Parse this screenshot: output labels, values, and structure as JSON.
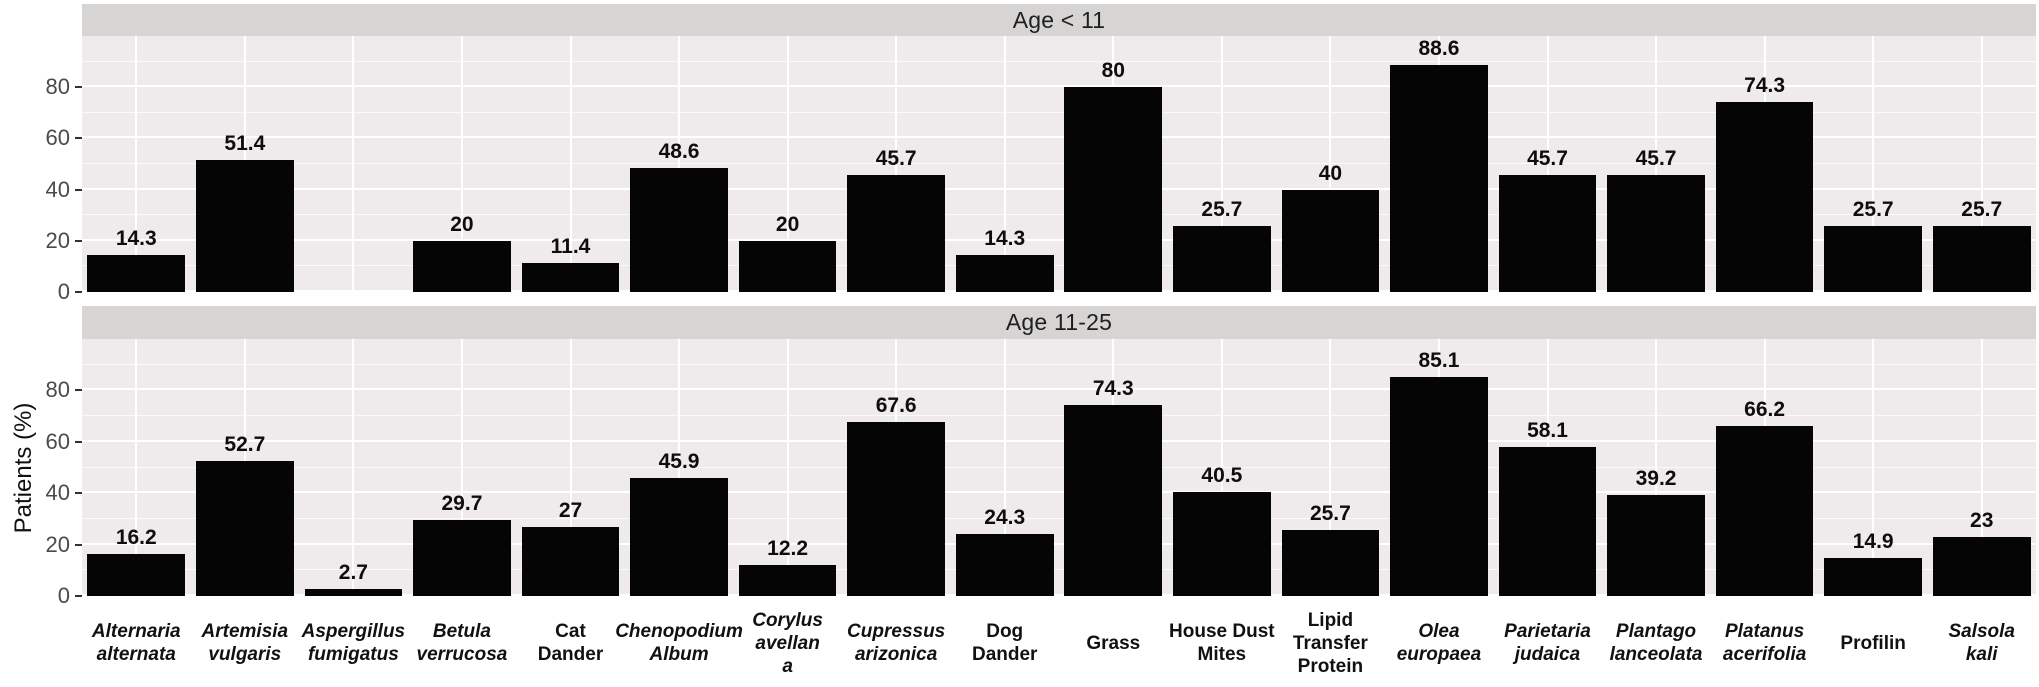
{
  "chart_data": {
    "type": "bar",
    "title": "",
    "ylabel": "Patients (%)",
    "xlabel": "",
    "ylim": [
      0,
      100
    ],
    "yticks": [
      0,
      20,
      40,
      60,
      80
    ],
    "minor_yticks": [
      10,
      30,
      50,
      70,
      90
    ],
    "grid": "on",
    "legend": "none",
    "bar_color": "#050505",
    "panel_bg": "#efebec",
    "strip_bg": "#d7d4d4",
    "gridline_color": "#ffffff",
    "categories": [
      {
        "lines": [
          "Alternaria",
          "alternata"
        ],
        "italic": true
      },
      {
        "lines": [
          "Artemisia",
          "vulgaris"
        ],
        "italic": true
      },
      {
        "lines": [
          "Aspergillus",
          "fumigatus"
        ],
        "italic": true
      },
      {
        "lines": [
          "Betula",
          "verrucosa"
        ],
        "italic": true
      },
      {
        "lines": [
          "Cat",
          "Dander"
        ],
        "italic": false
      },
      {
        "lines": [
          "Chenopodium",
          "Album"
        ],
        "italic": true
      },
      {
        "lines": [
          "Corylus",
          "avellan",
          "a"
        ],
        "italic": true
      },
      {
        "lines": [
          "Cupressus",
          "arizonica"
        ],
        "italic": true
      },
      {
        "lines": [
          "Dog",
          "Dander"
        ],
        "italic": false
      },
      {
        "lines": [
          "Grass"
        ],
        "italic": false
      },
      {
        "lines": [
          "House Dust",
          "Mites"
        ],
        "italic": false
      },
      {
        "lines": [
          "Lipid",
          "Transfer",
          "Protein"
        ],
        "italic": false
      },
      {
        "lines": [
          "Olea",
          "europaea"
        ],
        "italic": true
      },
      {
        "lines": [
          "Parietaria",
          "judaica"
        ],
        "italic": true
      },
      {
        "lines": [
          "Plantago",
          "lanceolata"
        ],
        "italic": true
      },
      {
        "lines": [
          "Platanus",
          "acerifolia"
        ],
        "italic": true
      },
      {
        "lines": [
          "Profilin"
        ],
        "italic": false
      },
      {
        "lines": [
          "Salsola",
          "kali"
        ],
        "italic": true
      }
    ],
    "facets": [
      {
        "title": "Age < 11",
        "values": [
          14.3,
          51.4,
          null,
          20,
          11.4,
          48.6,
          20,
          45.7,
          14.3,
          80,
          25.7,
          40,
          88.6,
          45.7,
          45.7,
          74.3,
          25.7,
          25.7
        ]
      },
      {
        "title": "Age 11-25",
        "values": [
          16.2,
          52.7,
          2.7,
          29.7,
          27,
          45.9,
          12.2,
          67.6,
          24.3,
          74.3,
          40.5,
          25.7,
          85.1,
          58.1,
          39.2,
          66.2,
          14.9,
          23
        ]
      }
    ]
  }
}
